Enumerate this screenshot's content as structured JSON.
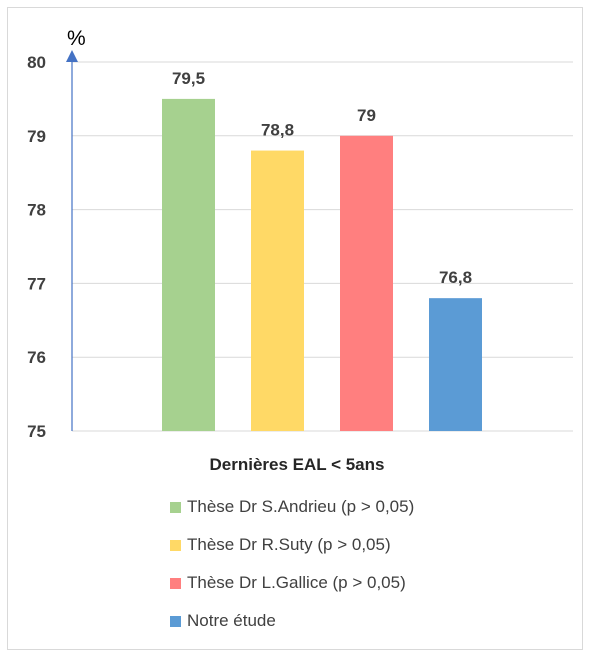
{
  "chart_data": {
    "type": "bar",
    "categories": [
      "Dernières EAL < 5ans"
    ],
    "series": [
      {
        "name": "Thèse Dr S.Andrieu (p > 0,05)",
        "value": 79.5,
        "label": "79,5",
        "color": "#a6d18f"
      },
      {
        "name": "Thèse Dr R.Suty (p > 0,05)",
        "value": 78.8,
        "label": "78,8",
        "color": "#ffd966"
      },
      {
        "name": "Thèse Dr L.Gallice (p > 0,05)",
        "value": 79,
        "label": "79",
        "color": "#ff7f7f"
      },
      {
        "name": "Notre étude",
        "value": 76.8,
        "label": "76,8",
        "color": "#5b9bd5"
      }
    ],
    "ylim": [
      75,
      80
    ],
    "yticks": [
      "75",
      "76",
      "77",
      "78",
      "79",
      "80"
    ],
    "yunit": "%",
    "xlabel": "Dernières EAL < 5ans",
    "grid": true,
    "legend_position": "bottom",
    "axis_color": "#4472c4"
  }
}
